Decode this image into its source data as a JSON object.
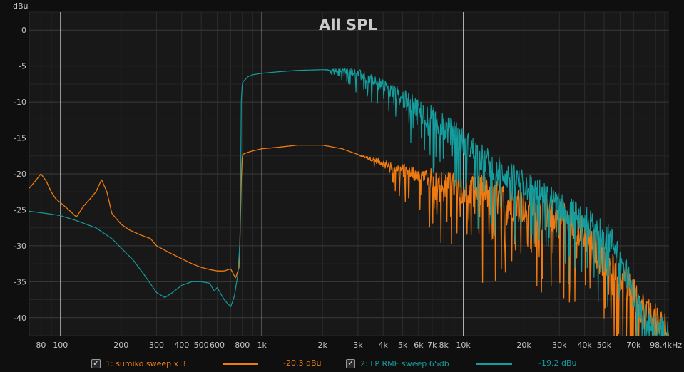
{
  "chart_data": {
    "type": "line",
    "title": "All SPL",
    "ylabel": "dBu",
    "xlabel": "",
    "x_scale": "log",
    "xlim": [
      70,
      105000
    ],
    "ylim": [
      -42.5,
      2.5
    ],
    "grid": true,
    "y_ticks": [
      0,
      -5,
      -10,
      -15,
      -20,
      -25,
      -30,
      -35,
      -40
    ],
    "y_tick_labels": [
      "0",
      "-5",
      "-10",
      "-15",
      "-20",
      "-25",
      "-30",
      "-35",
      "-40"
    ],
    "x_ticks": [
      80,
      100,
      200,
      300,
      400,
      500,
      600,
      800,
      1000,
      2000,
      3000,
      4000,
      5000,
      6000,
      7000,
      8000,
      10000,
      20000,
      30000,
      40000,
      50000,
      70000,
      98400
    ],
    "x_tick_labels": [
      "80",
      "100",
      "200",
      "300",
      "400",
      "500",
      "600",
      "800",
      "1k",
      "2k",
      "3k",
      "4k",
      "5k",
      "6k",
      "7k",
      "8k",
      "10k",
      "20k",
      "30k",
      "40k",
      "50k",
      "70k",
      "98.4kHz"
    ],
    "x_major_lines": [
      100,
      1000,
      10000
    ],
    "series": [
      {
        "name": "1: sumiko sweep x 3",
        "color": "#ee7a12",
        "summary_value": "-20.3 dBu",
        "x": [
          70,
          75,
          80,
          85,
          90,
          95,
          100,
          110,
          120,
          130,
          140,
          150,
          160,
          170,
          180,
          200,
          220,
          250,
          280,
          300,
          350,
          400,
          450,
          500,
          550,
          600,
          650,
          700,
          740,
          760,
          770,
          780,
          790,
          800,
          850,
          900,
          1000,
          1200,
          1500,
          2000,
          2500,
          3000,
          4000,
          5000,
          6000,
          8000,
          10000,
          12000,
          15000,
          20000,
          25000,
          30000,
          35000,
          40000,
          45000,
          50000,
          60000,
          70000,
          80000,
          90000,
          98400
        ],
        "y": [
          -22,
          -21,
          -20,
          -21,
          -22.5,
          -23.5,
          -24,
          -25,
          -26,
          -24.5,
          -23.5,
          -22.5,
          -20.8,
          -22.5,
          -25.5,
          -27,
          -27.8,
          -28.5,
          -29,
          -30,
          -31,
          -31.8,
          -32.5,
          -33,
          -33.3,
          -33.5,
          -33.5,
          -33.2,
          -34.5,
          -33.5,
          -33,
          -28,
          -21,
          -17.3,
          -17,
          -16.8,
          -16.5,
          -16.3,
          -16,
          -16,
          -16.5,
          -17.3,
          -18.5,
          -19.5,
          -20,
          -21.5,
          -22,
          -22.5,
          -23.5,
          -24.5,
          -25.5,
          -26,
          -27,
          -28.5,
          -30,
          -31.5,
          -34,
          -37,
          -39,
          -40.5,
          -41.5
        ],
        "noise_from_hz": 3000,
        "noise_dB": 5
      },
      {
        "name": "2: LP RME sweep 65db",
        "color": "#159c9c",
        "summary_value": "-19.2 dBu",
        "x": [
          70,
          80,
          90,
          100,
          120,
          150,
          180,
          200,
          230,
          260,
          300,
          330,
          360,
          400,
          450,
          500,
          550,
          580,
          600,
          620,
          650,
          700,
          730,
          760,
          780,
          790,
          800,
          850,
          900,
          1000,
          1200,
          1500,
          2000,
          2500,
          3000,
          3500,
          4000,
          5000,
          6000,
          7000,
          8000,
          10000,
          12000,
          15000,
          20000,
          25000,
          30000,
          35000,
          40000,
          45000,
          50000,
          55000,
          60000,
          65000,
          70000,
          80000,
          90000,
          98400
        ],
        "y": [
          -25.2,
          -25.4,
          -25.6,
          -25.8,
          -26.5,
          -27.5,
          -29,
          -30.3,
          -32,
          -34,
          -36.5,
          -37.2,
          -36.5,
          -35.5,
          -35,
          -35,
          -35.2,
          -36.3,
          -35.8,
          -36.5,
          -37.5,
          -38.5,
          -37,
          -34,
          -29,
          -10,
          -7.3,
          -6.5,
          -6.2,
          -6,
          -5.8,
          -5.6,
          -5.5,
          -5.6,
          -6,
          -6.8,
          -7.8,
          -9.5,
          -11,
          -12.3,
          -13.5,
          -15.5,
          -17.5,
          -19.5,
          -21.5,
          -23,
          -24.5,
          -25.5,
          -26.5,
          -27.5,
          -28.5,
          -29.5,
          -31,
          -34,
          -37,
          -40,
          -41.5,
          -42
        ],
        "noise_from_hz": 2000,
        "noise_dB": 4
      }
    ]
  }
}
